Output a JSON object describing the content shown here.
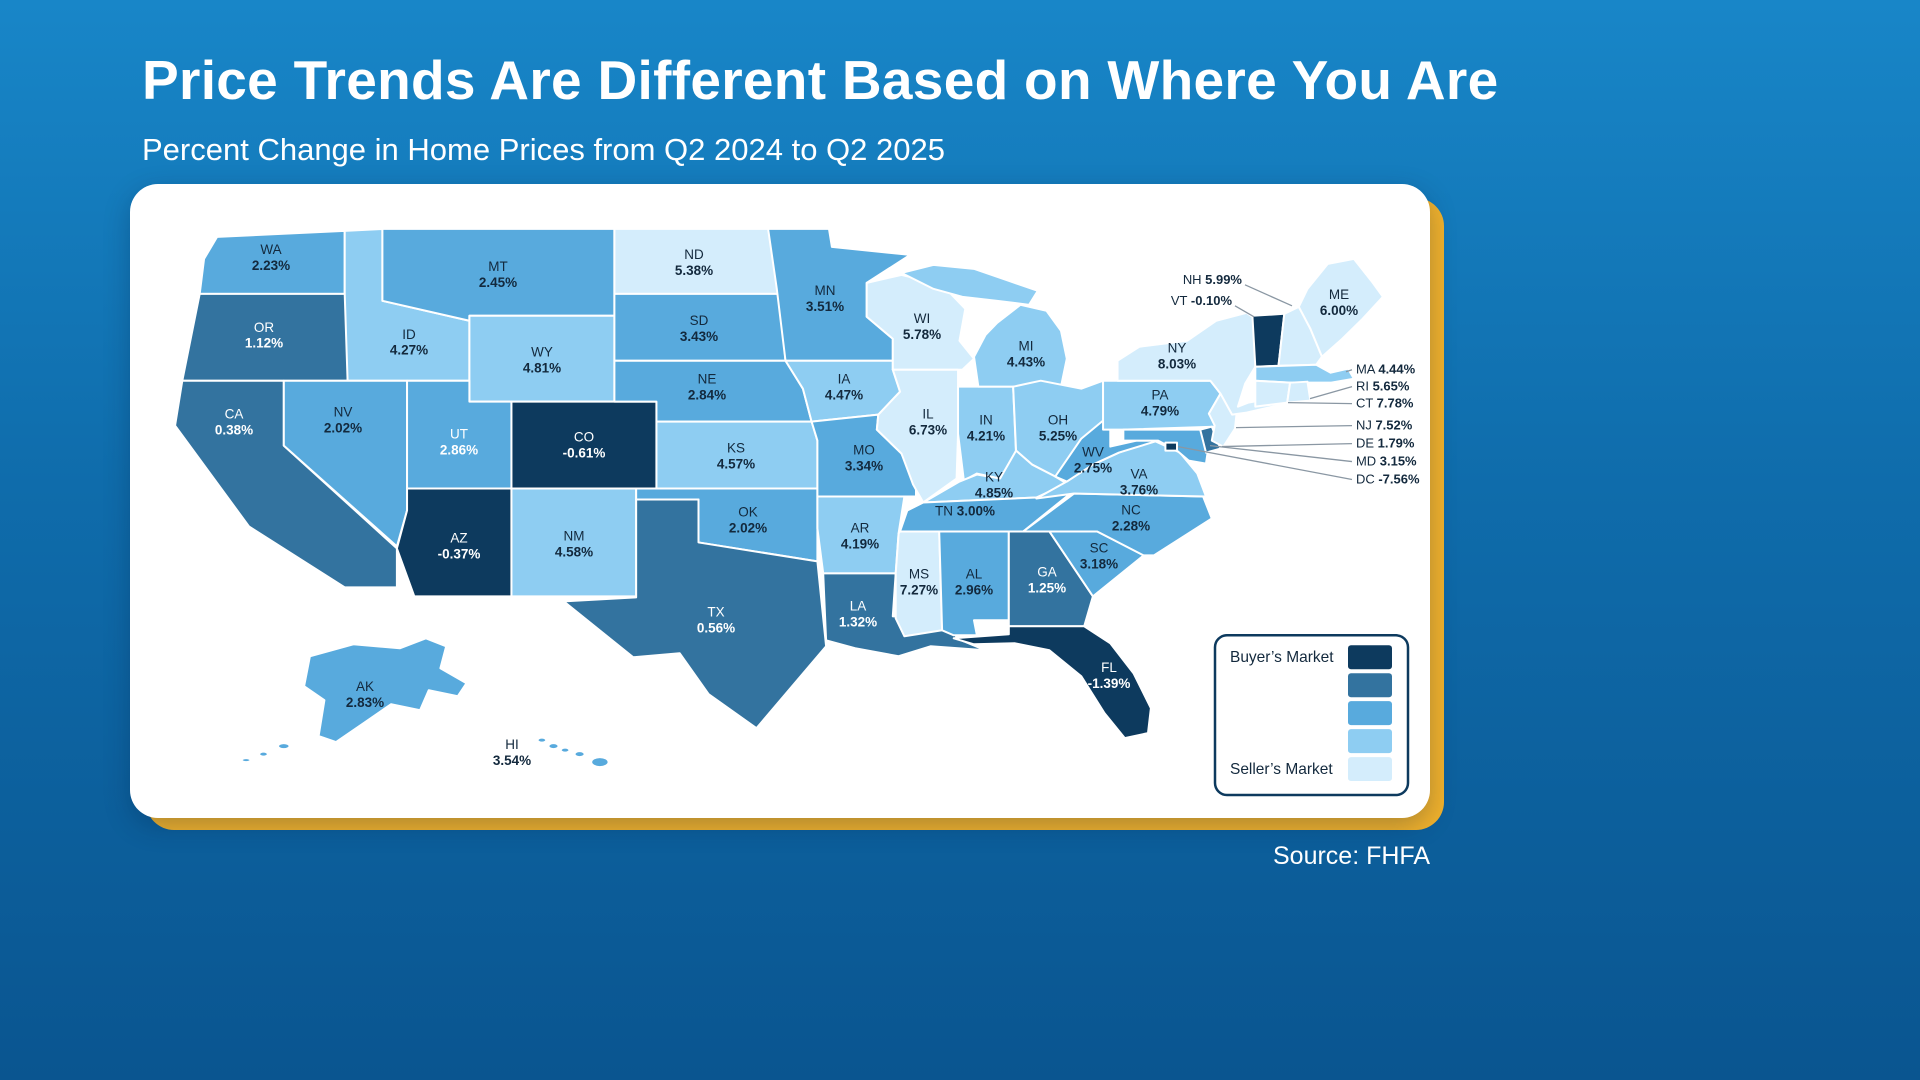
{
  "page": {
    "title": "Price Trends Are Different Based on Where You Are",
    "subtitle": "Percent Change in Home Prices from Q2 2024 to Q2 2025",
    "source": "Source: FHFA"
  },
  "colors": {
    "background_top": "#1886c8",
    "background_bottom": "#0a5590",
    "card": "#ffffff",
    "card_accent": "#f0b12c",
    "label_dark": "#13293d",
    "label_light": "#ffffff"
  },
  "legend": {
    "buyers_label": "Buyer’s Market",
    "sellers_label": "Seller’s Market"
  },
  "chart_data": {
    "type": "choropleth",
    "region": "United States",
    "title": "Percent Change in Home Prices from Q2 2024 to Q2 2025",
    "source": "FHFA",
    "unit": "percent",
    "legend_position": "bottom-right",
    "color_scale": {
      "colors": [
        "#0d3a5e",
        "#33739f",
        "#58aadd",
        "#8ecdf2",
        "#d4edfc"
      ],
      "breaks": [
        0,
        2.0,
        3.6,
        5.3
      ],
      "dark_end": "Buyer’s Market",
      "light_end": "Seller’s Market"
    },
    "states": [
      {
        "abbr": "WA",
        "value": 2.23,
        "display": "2.23%"
      },
      {
        "abbr": "OR",
        "value": 1.12,
        "display": "1.12%"
      },
      {
        "abbr": "CA",
        "value": 0.38,
        "display": "0.38%"
      },
      {
        "abbr": "ID",
        "value": 4.27,
        "display": "4.27%"
      },
      {
        "abbr": "NV",
        "value": 2.02,
        "display": "2.02%"
      },
      {
        "abbr": "UT",
        "value": 2.86,
        "display": "2.86%"
      },
      {
        "abbr": "AZ",
        "value": -0.37,
        "display": "-0.37%"
      },
      {
        "abbr": "MT",
        "value": 2.45,
        "display": "2.45%"
      },
      {
        "abbr": "WY",
        "value": 4.81,
        "display": "4.81%"
      },
      {
        "abbr": "CO",
        "value": -0.61,
        "display": "-0.61%"
      },
      {
        "abbr": "NM",
        "value": 4.58,
        "display": "4.58%"
      },
      {
        "abbr": "ND",
        "value": 5.38,
        "display": "5.38%"
      },
      {
        "abbr": "SD",
        "value": 3.43,
        "display": "3.43%"
      },
      {
        "abbr": "NE",
        "value": 2.84,
        "display": "2.84%"
      },
      {
        "abbr": "KS",
        "value": 4.57,
        "display": "4.57%"
      },
      {
        "abbr": "OK",
        "value": 2.02,
        "display": "2.02%"
      },
      {
        "abbr": "TX",
        "value": 0.56,
        "display": "0.56%"
      },
      {
        "abbr": "MN",
        "value": 3.51,
        "display": "3.51%"
      },
      {
        "abbr": "IA",
        "value": 4.47,
        "display": "4.47%"
      },
      {
        "abbr": "MO",
        "value": 3.34,
        "display": "3.34%"
      },
      {
        "abbr": "AR",
        "value": 4.19,
        "display": "4.19%"
      },
      {
        "abbr": "LA",
        "value": 1.32,
        "display": "1.32%"
      },
      {
        "abbr": "WI",
        "value": 5.78,
        "display": "5.78%"
      },
      {
        "abbr": "IL",
        "value": 6.73,
        "display": "6.73%"
      },
      {
        "abbr": "IN",
        "value": 4.21,
        "display": "4.21%"
      },
      {
        "abbr": "MI",
        "value": 4.43,
        "display": "4.43%"
      },
      {
        "abbr": "OH",
        "value": 5.25,
        "display": "5.25%"
      },
      {
        "abbr": "KY",
        "value": 4.85,
        "display": "4.85%"
      },
      {
        "abbr": "TN",
        "value": 3.0,
        "display": "3.00%"
      },
      {
        "abbr": "MS",
        "value": 7.27,
        "display": "7.27%"
      },
      {
        "abbr": "AL",
        "value": 2.96,
        "display": "2.96%"
      },
      {
        "abbr": "GA",
        "value": 1.25,
        "display": "1.25%"
      },
      {
        "abbr": "FL",
        "value": -1.39,
        "display": "-1.39%"
      },
      {
        "abbr": "SC",
        "value": 3.18,
        "display": "3.18%"
      },
      {
        "abbr": "NC",
        "value": 2.28,
        "display": "2.28%"
      },
      {
        "abbr": "VA",
        "value": 3.76,
        "display": "3.76%"
      },
      {
        "abbr": "WV",
        "value": 2.75,
        "display": "2.75%"
      },
      {
        "abbr": "PA",
        "value": 4.79,
        "display": "4.79%"
      },
      {
        "abbr": "NY",
        "value": 8.03,
        "display": "8.03%"
      },
      {
        "abbr": "NJ",
        "value": 7.52,
        "display": "7.52%"
      },
      {
        "abbr": "DE",
        "value": 1.79,
        "display": "1.79%"
      },
      {
        "abbr": "MD",
        "value": 3.15,
        "display": "3.15%"
      },
      {
        "abbr": "DC",
        "value": -7.56,
        "display": "-7.56%"
      },
      {
        "abbr": "CT",
        "value": 7.78,
        "display": "7.78%"
      },
      {
        "abbr": "RI",
        "value": 5.65,
        "display": "5.65%"
      },
      {
        "abbr": "MA",
        "value": 4.44,
        "display": "4.44%"
      },
      {
        "abbr": "VT",
        "value": -0.1,
        "display": "-0.10%"
      },
      {
        "abbr": "NH",
        "value": 5.99,
        "display": "5.99%"
      },
      {
        "abbr": "ME",
        "value": 6.0,
        "display": "6.00%"
      },
      {
        "abbr": "AK",
        "value": 2.83,
        "display": "2.83%"
      },
      {
        "abbr": "HI",
        "value": 3.54,
        "display": "3.54%"
      }
    ]
  }
}
